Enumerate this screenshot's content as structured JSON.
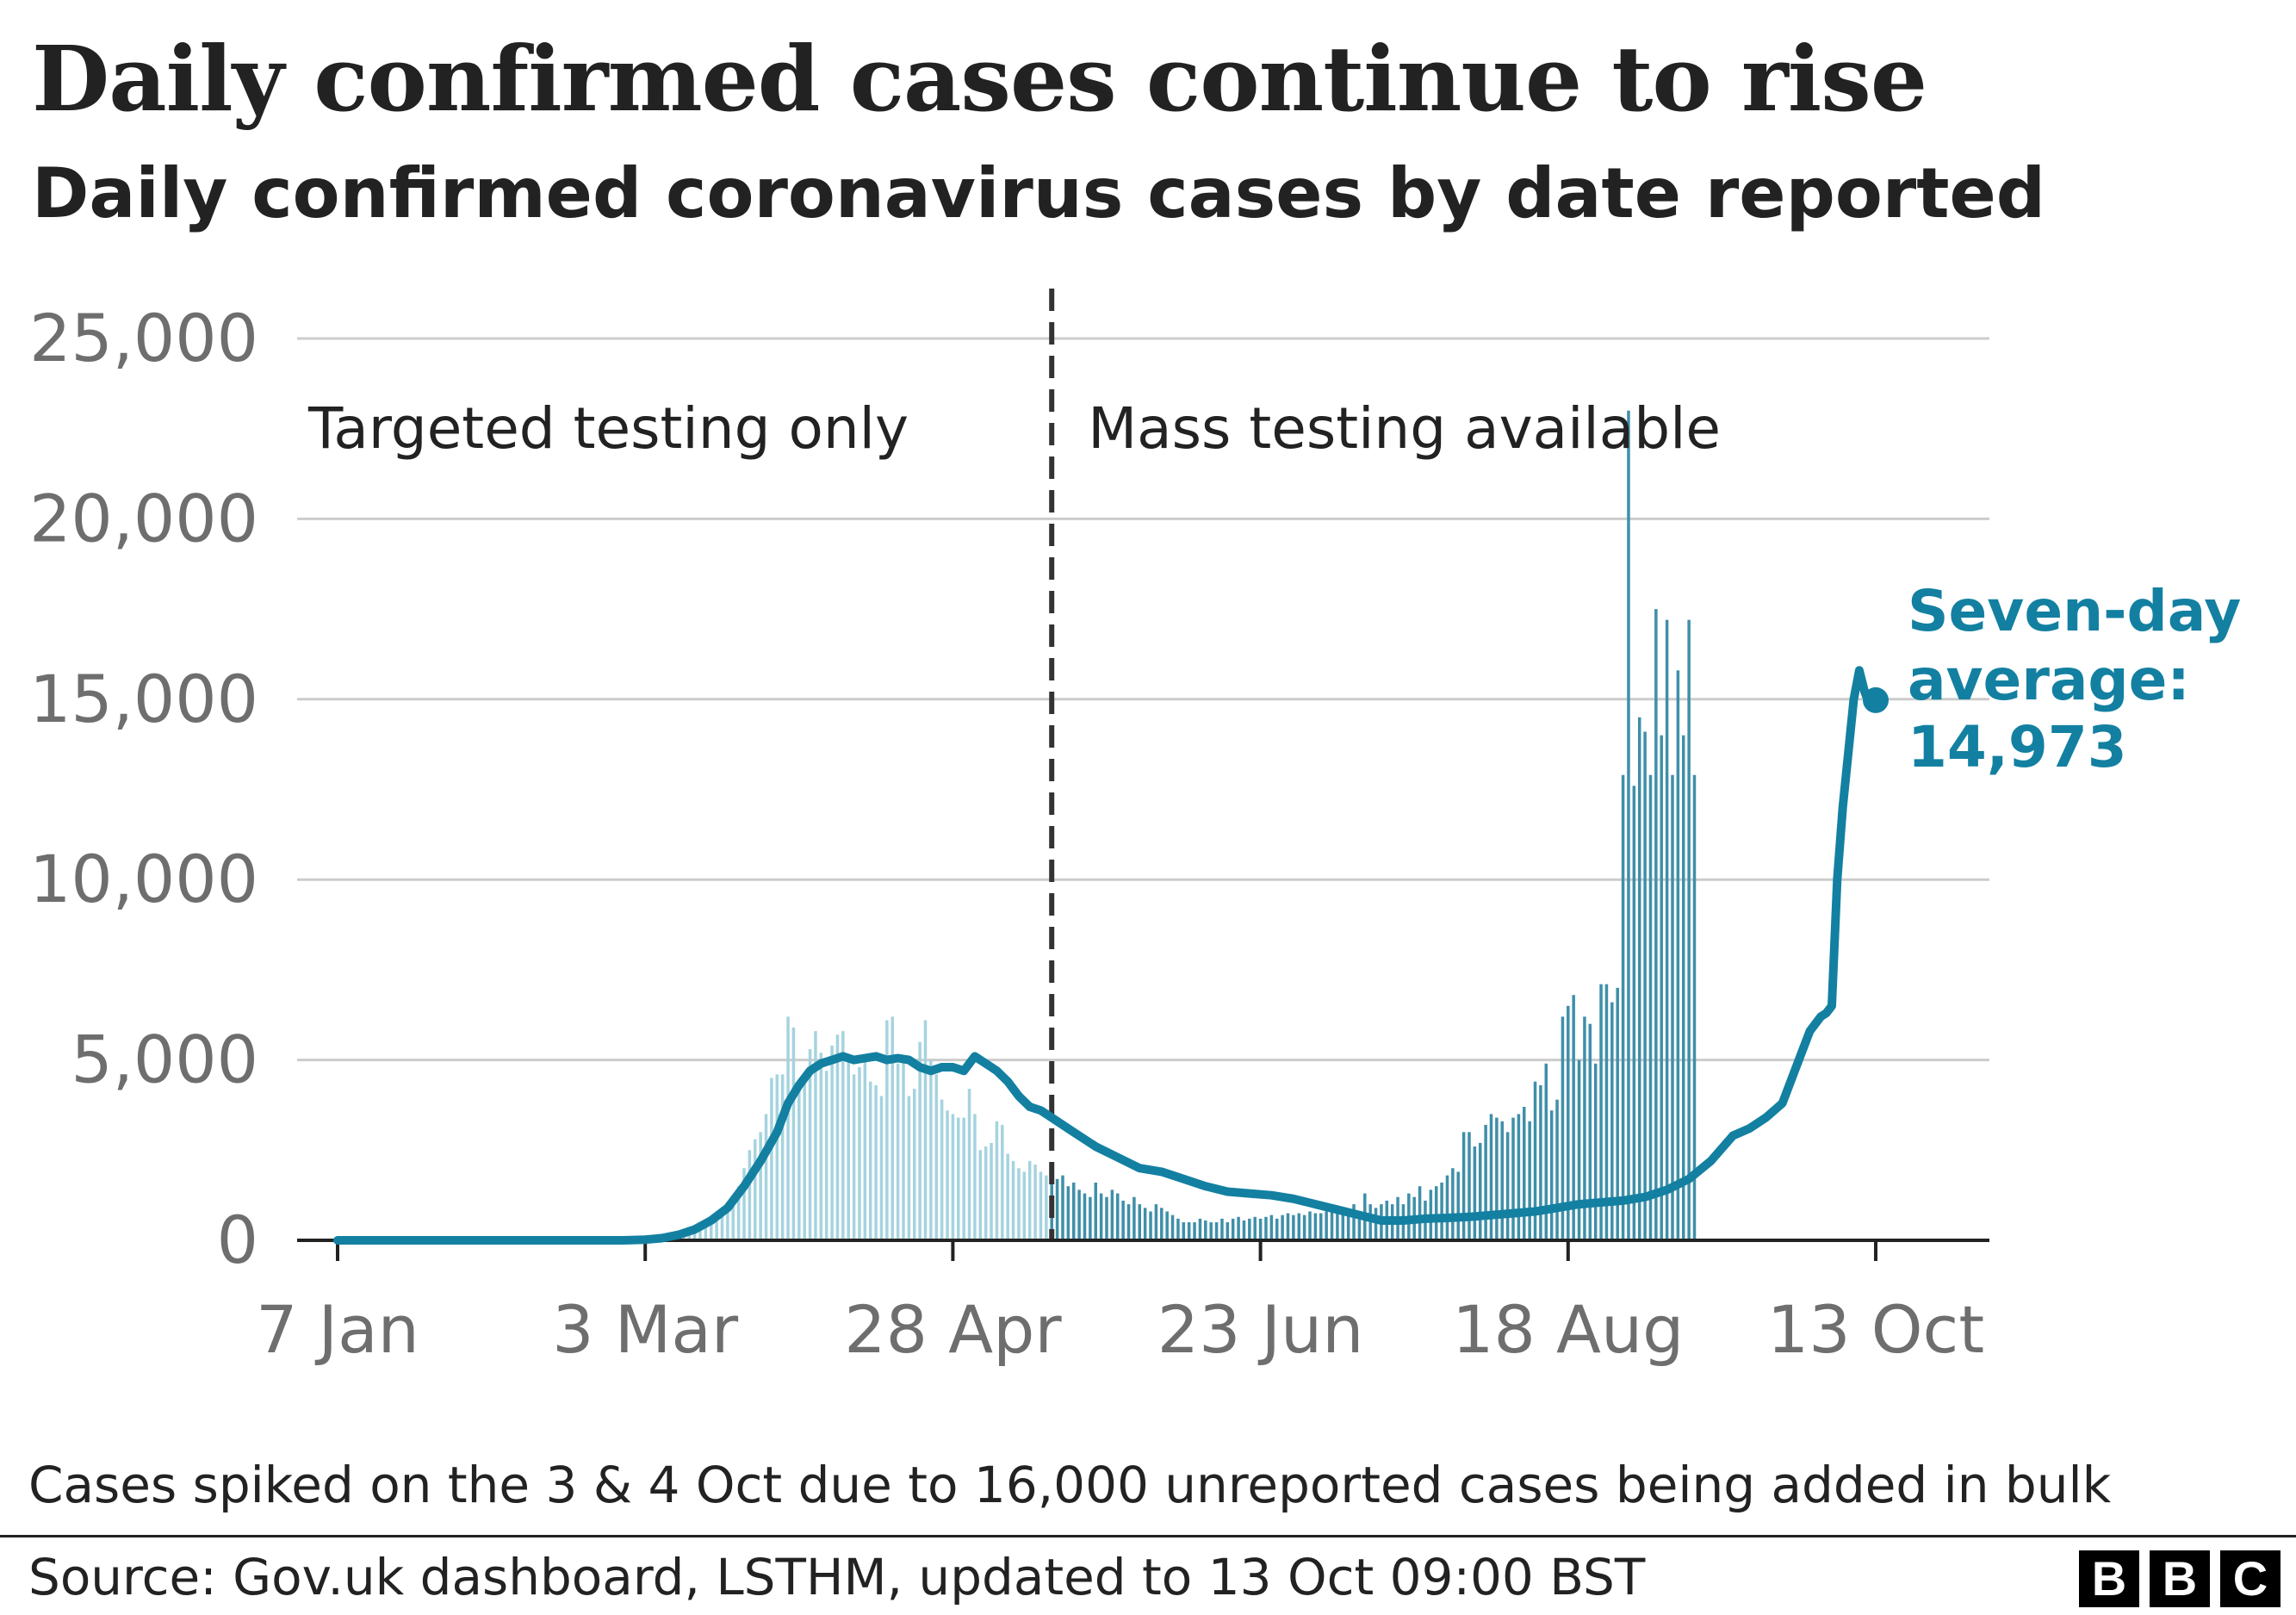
{
  "title": "Daily confirmed cases continue to rise",
  "subtitle": "Daily confirmed coronavirus cases by date reported",
  "note": "Cases spiked on the 3 & 4 Oct due to 16,000 unreported cases being added in bulk",
  "source": "Source: Gov.uk dashboard, LSTHM, updated to 13 Oct 09:00 BST",
  "logo": [
    "B",
    "B",
    "C"
  ],
  "colors": {
    "bar_before": "#a5d3df",
    "bar_after": "#3f8fa9",
    "average_line": "#1380A1",
    "grid": "#cccccc",
    "axis": "#222222",
    "tick_text": "#6e6e6e"
  },
  "chart_data": {
    "type": "bar",
    "title": "Daily confirmed cases continue to rise",
    "xlabel": "",
    "ylabel": "",
    "ylim": [
      0,
      25000
    ],
    "y_ticks": [
      0,
      5000,
      10000,
      15000,
      20000,
      25000
    ],
    "y_tick_labels": [
      "0",
      "5,000",
      "10,000",
      "15,000",
      "20,000",
      "25,000"
    ],
    "x_range_days": [
      0,
      280
    ],
    "x_ticks": [
      {
        "day": 0,
        "label": "7 Jan"
      },
      {
        "day": 56,
        "label": "3 Mar"
      },
      {
        "day": 112,
        "label": "28 Apr"
      },
      {
        "day": 168,
        "label": "23 Jun"
      },
      {
        "day": 224,
        "label": "18 Aug"
      },
      {
        "day": 280,
        "label": "13 Oct"
      }
    ],
    "split_day": 130,
    "regions": {
      "before_label": "Targeted testing only",
      "after_label": "Mass testing available"
    },
    "daily_cases": {
      "start_day": 50,
      "values": [
        1,
        2,
        2,
        4,
        4,
        6,
        12,
        20,
        25,
        35,
        50,
        70,
        100,
        150,
        200,
        270,
        330,
        430,
        500,
        600,
        800,
        900,
        1200,
        1500,
        2000,
        2500,
        2800,
        3000,
        3500,
        4500,
        4600,
        4600,
        6200,
        5900,
        4300,
        4400,
        5300,
        5800,
        5200,
        4700,
        5400,
        5700,
        5800,
        5000,
        4600,
        4800,
        5000,
        4400,
        4300,
        4000,
        6100,
        6200,
        4900,
        5000,
        4000,
        4200,
        5500,
        6100,
        5000,
        4600,
        3900,
        3600,
        3500,
        3400,
        3400,
        4200,
        3500,
        2500,
        2600,
        2700,
        3300,
        3200,
        2400,
        2200,
        2000,
        1900,
        2200,
        2100,
        1900,
        1800,
        1700,
        1700,
        1800,
        1500,
        1600,
        1400,
        1300,
        1200,
        1600,
        1300,
        1200,
        1400,
        1300,
        1100,
        1000,
        1200,
        1000,
        900,
        800,
        1000,
        900,
        800,
        700,
        600,
        500,
        500,
        500,
        600,
        550,
        500,
        500,
        600,
        500,
        600,
        650,
        550,
        600,
        650,
        600,
        650,
        700,
        600,
        700,
        750,
        700,
        750,
        700,
        800,
        750,
        750,
        800,
        850,
        800,
        900,
        800,
        1000,
        800,
        1300,
        1000,
        900,
        1000,
        1100,
        1000,
        1200,
        1000,
        1300,
        1200,
        1500,
        1100,
        1400,
        1500,
        1600,
        1800,
        2000,
        1900,
        3000,
        3000,
        2600,
        2700,
        3200,
        3500,
        3400,
        3300,
        3000,
        3400,
        3500,
        3700,
        3300,
        4400,
        4300,
        4900,
        3600,
        3900,
        6200,
        6500,
        6800,
        5000,
        6200,
        6000,
        4900,
        7100,
        7100,
        6600,
        7000,
        12900,
        23000,
        12600,
        14500,
        14100,
        12900,
        17500,
        14000,
        17200,
        12900,
        15800,
        14000,
        17200,
        12900
      ]
    },
    "series": [
      {
        "name": "Seven-day average",
        "values": [
          [
            0,
            0
          ],
          [
            52,
            0
          ],
          [
            56,
            20
          ],
          [
            59,
            60
          ],
          [
            62,
            150
          ],
          [
            65,
            300
          ],
          [
            68,
            550
          ],
          [
            71,
            900
          ],
          [
            74,
            1500
          ],
          [
            77,
            2200
          ],
          [
            80,
            3000
          ],
          [
            82,
            3800
          ],
          [
            84,
            4300
          ],
          [
            86,
            4700
          ],
          [
            88,
            4900
          ],
          [
            90,
            5000
          ],
          [
            92,
            5100
          ],
          [
            94,
            5000
          ],
          [
            96,
            5050
          ],
          [
            98,
            5100
          ],
          [
            100,
            5000
          ],
          [
            102,
            5050
          ],
          [
            104,
            5000
          ],
          [
            106,
            4800
          ],
          [
            108,
            4700
          ],
          [
            110,
            4800
          ],
          [
            112,
            4800
          ],
          [
            114,
            4700
          ],
          [
            116,
            5100
          ],
          [
            118,
            4900
          ],
          [
            120,
            4700
          ],
          [
            122,
            4400
          ],
          [
            124,
            4000
          ],
          [
            126,
            3700
          ],
          [
            128,
            3600
          ],
          [
            130,
            3400
          ],
          [
            134,
            3000
          ],
          [
            138,
            2600
          ],
          [
            142,
            2300
          ],
          [
            146,
            2000
          ],
          [
            150,
            1900
          ],
          [
            154,
            1700
          ],
          [
            158,
            1500
          ],
          [
            162,
            1350
          ],
          [
            166,
            1300
          ],
          [
            170,
            1250
          ],
          [
            174,
            1150
          ],
          [
            178,
            1000
          ],
          [
            182,
            850
          ],
          [
            186,
            700
          ],
          [
            190,
            550
          ],
          [
            194,
            550
          ],
          [
            198,
            600
          ],
          [
            202,
            620
          ],
          [
            206,
            650
          ],
          [
            210,
            700
          ],
          [
            214,
            750
          ],
          [
            218,
            800
          ],
          [
            222,
            900
          ],
          [
            226,
            1000
          ],
          [
            230,
            1050
          ],
          [
            234,
            1100
          ],
          [
            238,
            1200
          ],
          [
            242,
            1400
          ],
          [
            246,
            1700
          ],
          [
            250,
            2200
          ],
          [
            254,
            2900
          ],
          [
            257,
            3100
          ],
          [
            260,
            3400
          ],
          [
            263,
            3800
          ],
          [
            266,
            5000
          ],
          [
            268,
            5800
          ],
          [
            270,
            6200
          ],
          [
            271,
            6300
          ],
          [
            272,
            6500
          ],
          [
            273,
            10000
          ],
          [
            274,
            12000
          ],
          [
            275,
            13500
          ],
          [
            276,
            15000
          ],
          [
            277,
            15800
          ],
          [
            278,
            15200
          ],
          [
            279,
            14800
          ],
          [
            280,
            14973
          ]
        ],
        "end_label": [
          "Seven-day",
          "average:",
          "14,973"
        ]
      }
    ]
  }
}
